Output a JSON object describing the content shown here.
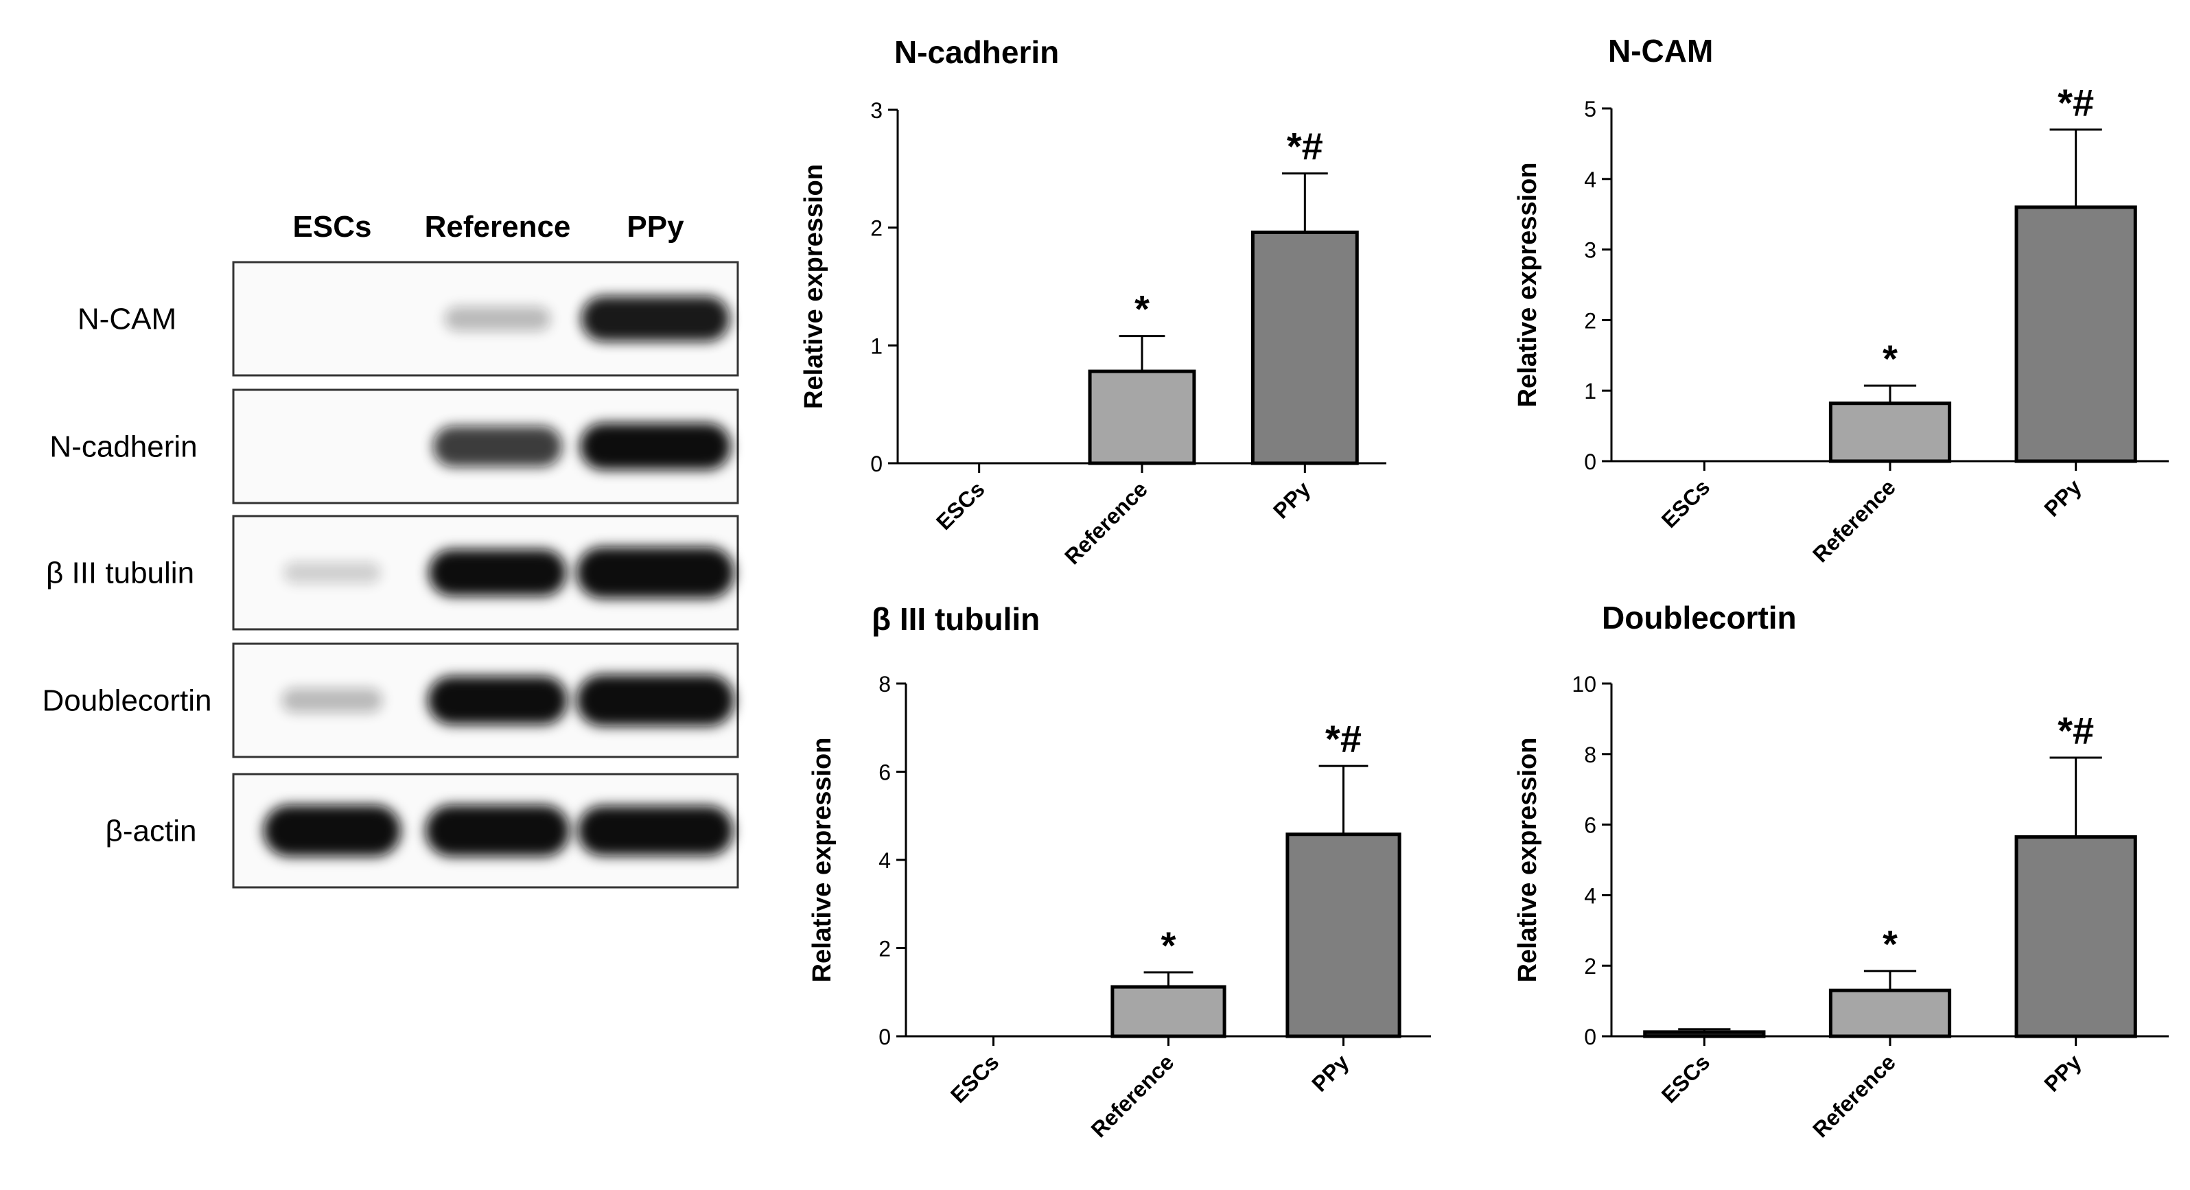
{
  "blot": {
    "columns": [
      "ESCs",
      "Reference",
      "PPy"
    ],
    "rows": [
      {
        "label": "N-CAM",
        "bands": [
          0.0,
          0.12,
          0.8
        ]
      },
      {
        "label": "N-cadherin",
        "bands": [
          0.0,
          0.65,
          0.85
        ]
      },
      {
        "label": "β III tubulin",
        "bands": [
          0.03,
          0.85,
          1.0
        ]
      },
      {
        "label": "Doublecortin",
        "bands": [
          0.12,
          0.9,
          1.0
        ]
      },
      {
        "label": "β-actin",
        "bands": [
          1.0,
          1.0,
          0.95
        ]
      }
    ]
  },
  "colors": {
    "reference_bar": "#a6a6a6",
    "ppy_bar": "#7f7f7f",
    "axis": "#000000",
    "band": "#0d0d0d"
  },
  "chart_data": [
    {
      "type": "bar",
      "title": "N-cadherin",
      "ylabel": "Relative expression",
      "categories": [
        "ESCs",
        "Reference",
        "PPy"
      ],
      "values": [
        0,
        0.78,
        1.96
      ],
      "errors": [
        0,
        0.3,
        0.5
      ],
      "annotations": [
        "",
        "*",
        "*#"
      ],
      "ylim": [
        0,
        3
      ],
      "yticks": [
        0,
        1,
        2,
        3
      ],
      "grid": false
    },
    {
      "type": "bar",
      "title": "N-CAM",
      "ylabel": "Relative expression",
      "categories": [
        "ESCs",
        "Reference",
        "PPy"
      ],
      "values": [
        0,
        0.82,
        3.6
      ],
      "errors": [
        0,
        0.25,
        1.1
      ],
      "annotations": [
        "",
        "*",
        "*#"
      ],
      "ylim": [
        0,
        5
      ],
      "yticks": [
        0,
        1,
        2,
        3,
        4,
        5
      ],
      "grid": false
    },
    {
      "type": "bar",
      "title": "β III tubulin",
      "ylabel": "Relative expression",
      "categories": [
        "ESCs",
        "Reference",
        "PPy"
      ],
      "values": [
        0,
        1.12,
        4.58
      ],
      "errors": [
        0,
        0.33,
        1.55
      ],
      "annotations": [
        "",
        "*",
        "*#"
      ],
      "ylim": [
        0,
        8
      ],
      "yticks": [
        0,
        2,
        4,
        6,
        8
      ],
      "grid": false
    },
    {
      "type": "bar",
      "title": "Doublecortin",
      "ylabel": "Relative expression",
      "categories": [
        "ESCs",
        "Reference",
        "PPy"
      ],
      "values": [
        0.12,
        1.3,
        5.65
      ],
      "errors": [
        0.08,
        0.55,
        2.25
      ],
      "annotations": [
        "",
        "*",
        "*#"
      ],
      "ylim": [
        0,
        10
      ],
      "yticks": [
        0,
        2,
        4,
        6,
        8,
        10
      ],
      "grid": false
    }
  ]
}
